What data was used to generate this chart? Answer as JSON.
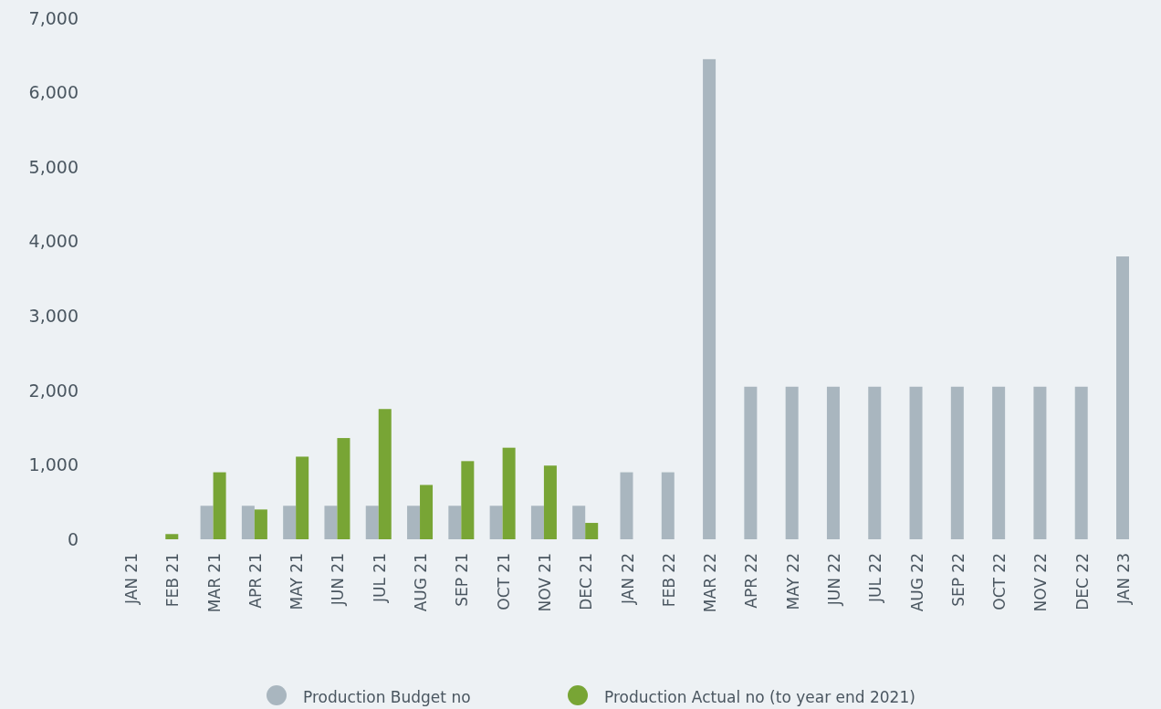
{
  "chart_data": {
    "type": "bar",
    "categories": [
      "JAN 21",
      "FEB 21",
      "MAR 21",
      "APR 21",
      "MAY 21",
      "JUN 21",
      "JUL 21",
      "AUG 21",
      "SEP 21",
      "OCT 21",
      "NOV 21",
      "DEC 21",
      "JAN 22",
      "FEB 22",
      "MAR 22",
      "APR 22",
      "MAY 22",
      "JUN 22",
      "JUL 22",
      "AUG 22",
      "SEP 22",
      "OCT 22",
      "NOV 22",
      "DEC 22",
      "JAN 23"
    ],
    "series": [
      {
        "name": "Production Budget no",
        "color": "#a9b6bf",
        "values": [
          null,
          null,
          450,
          450,
          450,
          450,
          450,
          450,
          450,
          450,
          450,
          450,
          900,
          900,
          6450,
          2050,
          2050,
          2050,
          2050,
          2050,
          2050,
          2050,
          2050,
          2050,
          3800
        ]
      },
      {
        "name": "Production Actual no (to year end 2021)",
        "color": "#78a535",
        "values": [
          null,
          70,
          900,
          400,
          1110,
          1360,
          1750,
          730,
          1050,
          1230,
          990,
          220,
          null,
          null,
          null,
          null,
          null,
          null,
          null,
          null,
          null,
          null,
          null,
          null,
          null
        ]
      }
    ],
    "ylim": [
      0,
      7000
    ],
    "yticks": [
      {
        "value": 0,
        "label": "0"
      },
      {
        "value": 1000,
        "label": "1,000"
      },
      {
        "value": 2000,
        "label": "2,000"
      },
      {
        "value": 3000,
        "label": "3,000"
      },
      {
        "value": 4000,
        "label": "4,000"
      },
      {
        "value": 5000,
        "label": "5,000"
      },
      {
        "value": 6000,
        "label": "6,000"
      },
      {
        "value": 7000,
        "label": "7,000"
      }
    ],
    "grid": false,
    "legend": "bottom"
  }
}
